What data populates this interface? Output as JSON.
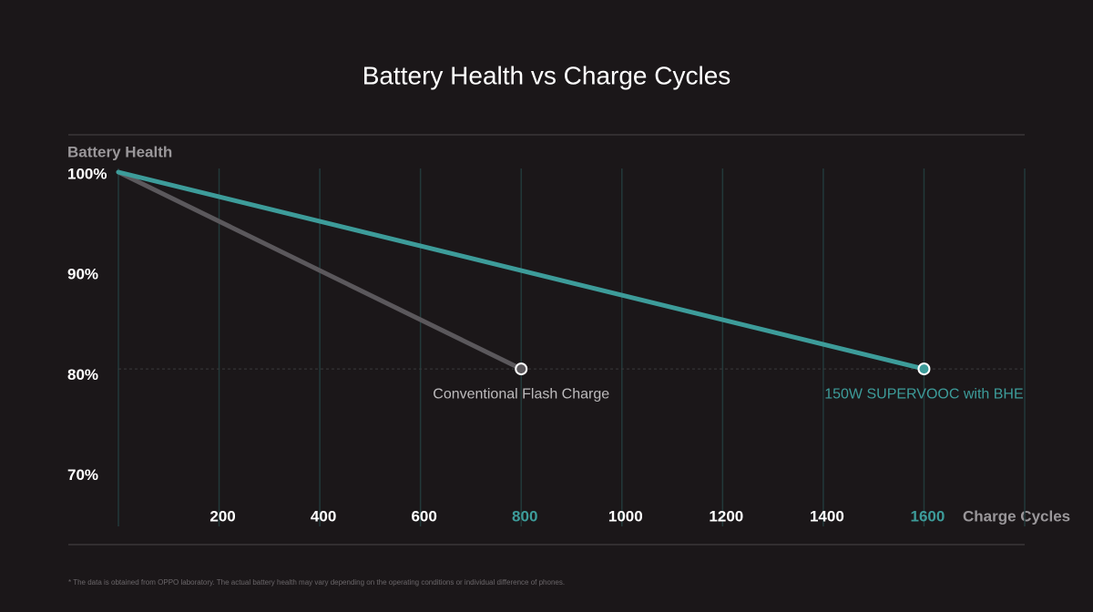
{
  "chart_data": {
    "type": "line",
    "title": "Battery Health vs Charge Cycles",
    "y_label": "Battery Health",
    "x_label": "Charge Cycles",
    "series": [
      {
        "name": "Conventional Flash Charge",
        "color": "#5b585c",
        "label_color": "#bdbbbd",
        "x": [
          0,
          800
        ],
        "values": [
          100,
          80
        ]
      },
      {
        "name": "150W SUPERVOOC with BHE",
        "color": "#3d9c9a",
        "label_color": "#3d9c9a",
        "x": [
          0,
          1600
        ],
        "values": [
          100,
          80
        ]
      }
    ],
    "xlim": [
      0,
      1800
    ],
    "xticks": [
      200,
      400,
      600,
      800,
      1000,
      1200,
      1400,
      1600
    ],
    "ylim": [
      64,
      100
    ],
    "yticks": [
      {
        "value": 100,
        "label": "100%"
      },
      {
        "value": 90,
        "label": "90%"
      },
      {
        "value": 80,
        "label": "80%"
      },
      {
        "value": 70,
        "label": "70%"
      }
    ],
    "highlight_color": "#3d9c9a",
    "grid": true,
    "footnote": "* The data is obtained from OPPO laboratory. The actual battery health may vary depending on the operating conditions or individual difference of phones."
  }
}
